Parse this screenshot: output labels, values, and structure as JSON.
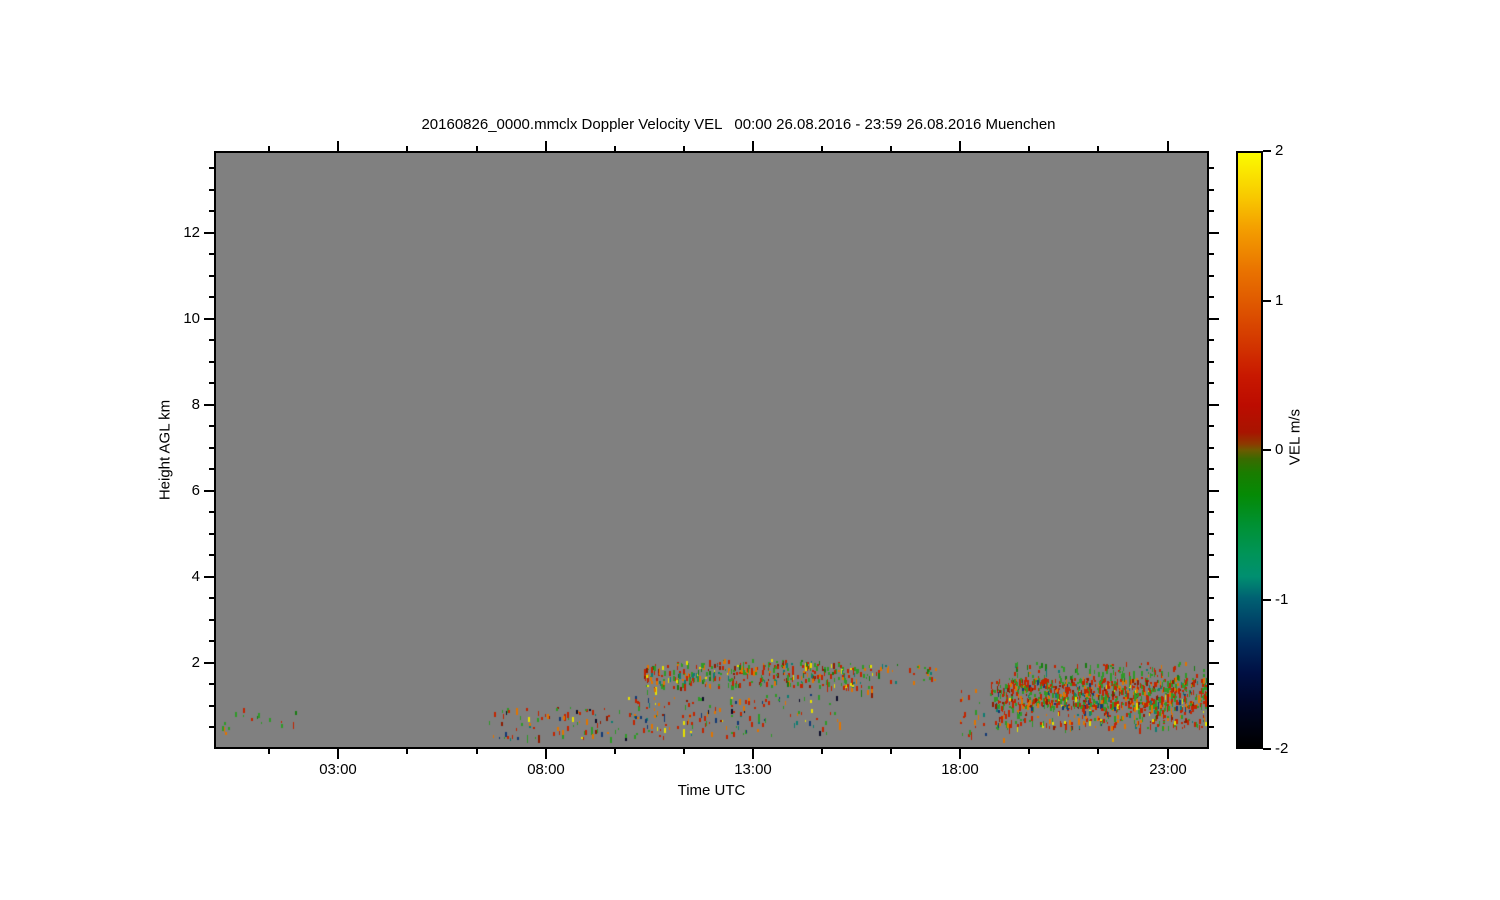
{
  "page": {
    "background": "#ffffff"
  },
  "chart_data": {
    "type": "heatmap",
    "title": "20160826_0000.mmclx Doppler Velocity VEL   00:00 26.08.2016 - 23:59 26.08.2016 Muenchen",
    "xlabel": "Time UTC",
    "ylabel": "Height AGL km",
    "plot_background": "#808080",
    "x_axis": {
      "range_hours": [
        0,
        24
      ],
      "major_ticks": [
        {
          "v": 3,
          "label": "03:00"
        },
        {
          "v": 8,
          "label": "08:00"
        },
        {
          "v": 13,
          "label": "13:00"
        },
        {
          "v": 18,
          "label": "18:00"
        },
        {
          "v": 23,
          "label": "23:00"
        }
      ],
      "minor_ticks": [
        1.333,
        4.667,
        6.333,
        9.667,
        11.333,
        14.667,
        16.333,
        19.667,
        21.333
      ]
    },
    "y_axis": {
      "range_km": [
        0,
        13.9
      ],
      "major_ticks": [
        {
          "v": 2,
          "label": "2"
        },
        {
          "v": 4,
          "label": "4"
        },
        {
          "v": 6,
          "label": "6"
        },
        {
          "v": 8,
          "label": "8"
        },
        {
          "v": 10,
          "label": "10"
        },
        {
          "v": 12,
          "label": "12"
        }
      ],
      "minor_ticks": [
        0.5,
        1,
        1.5,
        2.5,
        3,
        3.5,
        4.5,
        5,
        5.5,
        6.5,
        7,
        7.5,
        8.5,
        9,
        9.5,
        10.5,
        11,
        11.5,
        12.5,
        13,
        13.5
      ]
    },
    "colorbar": {
      "label": "VEL m/s",
      "min": -2,
      "max": 2,
      "ticks": [
        {
          "v": 2,
          "label": "2"
        },
        {
          "v": 1,
          "label": "1"
        },
        {
          "v": 0,
          "label": "0"
        },
        {
          "v": -1,
          "label": "-1"
        },
        {
          "v": -2,
          "label": "-2"
        }
      ],
      "gradient_stops": [
        {
          "v": 2.0,
          "c": "#fbfb00"
        },
        {
          "v": 1.7,
          "c": "#f8c800"
        },
        {
          "v": 1.5,
          "c": "#f4a000"
        },
        {
          "v": 1.2,
          "c": "#e97200"
        },
        {
          "v": 1.0,
          "c": "#e05a00"
        },
        {
          "v": 0.7,
          "c": "#d23400"
        },
        {
          "v": 0.5,
          "c": "#c81800"
        },
        {
          "v": 0.3,
          "c": "#bc0c00"
        },
        {
          "v": 0.12,
          "c": "#a81400"
        },
        {
          "v": 0.04,
          "c": "#8c3a00"
        },
        {
          "v": 0.0,
          "c": "#6d5a00"
        },
        {
          "v": -0.06,
          "c": "#3a6a00"
        },
        {
          "v": -0.15,
          "c": "#1a7c00"
        },
        {
          "v": -0.3,
          "c": "#058a05"
        },
        {
          "v": -0.5,
          "c": "#009132"
        },
        {
          "v": -0.7,
          "c": "#009458"
        },
        {
          "v": -0.85,
          "c": "#008f70"
        },
        {
          "v": -1.0,
          "c": "#006072"
        },
        {
          "v": -1.15,
          "c": "#004468"
        },
        {
          "v": -1.3,
          "c": "#002a5c"
        },
        {
          "v": -1.5,
          "c": "#001044"
        },
        {
          "v": -1.7,
          "c": "#000627"
        },
        {
          "v": -2.0,
          "c": "#000000"
        }
      ]
    },
    "speckles": {
      "seed": 20160826,
      "palette": {
        "red": "#c22500",
        "darkred": "#8e1c00",
        "orange": "#e07400",
        "amber": "#e0a400",
        "yellow": "#e6e000",
        "green": "#2f9a28",
        "darkgreen": "#1a7c12",
        "teal": "#0f7d72",
        "navy": "#123a74",
        "ink": "#0d0d2a"
      },
      "regions": [
        {
          "name": "early-morning-sparse",
          "t": [
            0.05,
            1.95
          ],
          "h": [
            0.45,
            1.0
          ],
          "n": 16,
          "colors": [
            [
              "green",
              0.62
            ],
            [
              "darkgreen",
              0.13
            ],
            [
              "red",
              0.13
            ],
            [
              "orange",
              0.12
            ]
          ]
        },
        {
          "name": "morning-low",
          "t": [
            6.5,
            9.85
          ],
          "h": [
            0.2,
            0.95
          ],
          "n": 85,
          "colors": [
            [
              "red",
              0.33
            ],
            [
              "green",
              0.22
            ],
            [
              "orange",
              0.15
            ],
            [
              "darkred",
              0.08
            ],
            [
              "teal",
              0.06
            ],
            [
              "yellow",
              0.05
            ],
            [
              "navy",
              0.06
            ],
            [
              "ink",
              0.05
            ]
          ]
        },
        {
          "name": "midday-low",
          "t": [
            9.85,
            13.3
          ],
          "h": [
            0.25,
            1.2
          ],
          "n": 120,
          "colors": [
            [
              "red",
              0.3
            ],
            [
              "green",
              0.2
            ],
            [
              "orange",
              0.15
            ],
            [
              "yellow",
              0.09
            ],
            [
              "teal",
              0.08
            ],
            [
              "navy",
              0.08
            ],
            [
              "darkred",
              0.06
            ],
            [
              "ink",
              0.04
            ]
          ]
        },
        {
          "name": "afternoon-low",
          "t": [
            13.3,
            15.1
          ],
          "h": [
            0.3,
            1.3
          ],
          "n": 35,
          "colors": [
            [
              "red",
              0.28
            ],
            [
              "green",
              0.26
            ],
            [
              "teal",
              0.12
            ],
            [
              "navy",
              0.1
            ],
            [
              "orange",
              0.12
            ],
            [
              "yellow",
              0.06
            ],
            [
              "ink",
              0.06
            ]
          ]
        },
        {
          "name": "midday-cloud-band",
          "t": [
            10.35,
            15.9
          ],
          "arc": {
            "tc": 13.1,
            "hmax": 2.07,
            "k": 0.02,
            "thick": 0.62
          },
          "n": 400,
          "colors": [
            [
              "red",
              0.32
            ],
            [
              "green",
              0.26
            ],
            [
              "orange",
              0.16
            ],
            [
              "darkred",
              0.07
            ],
            [
              "teal",
              0.07
            ],
            [
              "yellow",
              0.06
            ],
            [
              "darkgreen",
              0.06
            ]
          ]
        },
        {
          "name": "band-tail",
          "t": [
            15.9,
            17.5
          ],
          "h": [
            1.5,
            1.95
          ],
          "n": 30,
          "colors": [
            [
              "red",
              0.3
            ],
            [
              "green",
              0.3
            ],
            [
              "orange",
              0.15
            ],
            [
              "teal",
              0.1
            ],
            [
              "darkgreen",
              0.15
            ]
          ]
        },
        {
          "name": "evening-lead",
          "t": [
            18.0,
            18.8
          ],
          "h": [
            0.3,
            1.5
          ],
          "n": 22,
          "colors": [
            [
              "red",
              0.45
            ],
            [
              "green",
              0.3
            ],
            [
              "orange",
              0.1
            ],
            [
              "teal",
              0.15
            ]
          ]
        },
        {
          "name": "evening-upper",
          "t": [
            19.3,
            23.97
          ],
          "h": [
            1.55,
            2.0
          ],
          "n": 130,
          "colors": [
            [
              "green",
              0.42
            ],
            [
              "red",
              0.3
            ],
            [
              "orange",
              0.1
            ],
            [
              "darkgreen",
              0.12
            ],
            [
              "teal",
              0.06
            ]
          ]
        },
        {
          "name": "evening-main-dense",
          "t": [
            18.75,
            23.97
          ],
          "h": [
            0.95,
            1.62
          ],
          "n": 820,
          "colors": [
            [
              "red",
              0.4
            ],
            [
              "green",
              0.33
            ],
            [
              "orange",
              0.1
            ],
            [
              "darkred",
              0.08
            ],
            [
              "teal",
              0.03
            ],
            [
              "yellow",
              0.02
            ],
            [
              "navy",
              0.04
            ]
          ]
        },
        {
          "name": "evening-lower",
          "t": [
            18.85,
            23.97
          ],
          "h": [
            0.45,
            1.05
          ],
          "n": 290,
          "colors": [
            [
              "red",
              0.36
            ],
            [
              "green",
              0.26
            ],
            [
              "orange",
              0.14
            ],
            [
              "darkred",
              0.07
            ],
            [
              "teal",
              0.05
            ],
            [
              "yellow",
              0.05
            ],
            [
              "navy",
              0.07
            ]
          ]
        }
      ],
      "stray_points": [
        {
          "t": 0.22,
          "h": 0.35,
          "c": "orange"
        },
        {
          "t": 11.32,
          "h": 0.42,
          "c": "yellow",
          "w": 2,
          "s": 8
        },
        {
          "t": 11.3,
          "h": 0.62,
          "c": "yellow",
          "w": 2,
          "s": 4
        },
        {
          "t": 14.4,
          "h": 0.9,
          "c": "yellow",
          "w": 2,
          "s": 4
        },
        {
          "t": 18.62,
          "h": 0.33,
          "c": "navy"
        },
        {
          "t": 19.05,
          "h": 0.2,
          "c": "orange",
          "s": 5
        },
        {
          "t": 21.7,
          "h": 0.22,
          "c": "amber",
          "s": 4
        },
        {
          "t": 23.2,
          "h": 0.62,
          "c": "yellow",
          "s": 4
        }
      ]
    }
  }
}
